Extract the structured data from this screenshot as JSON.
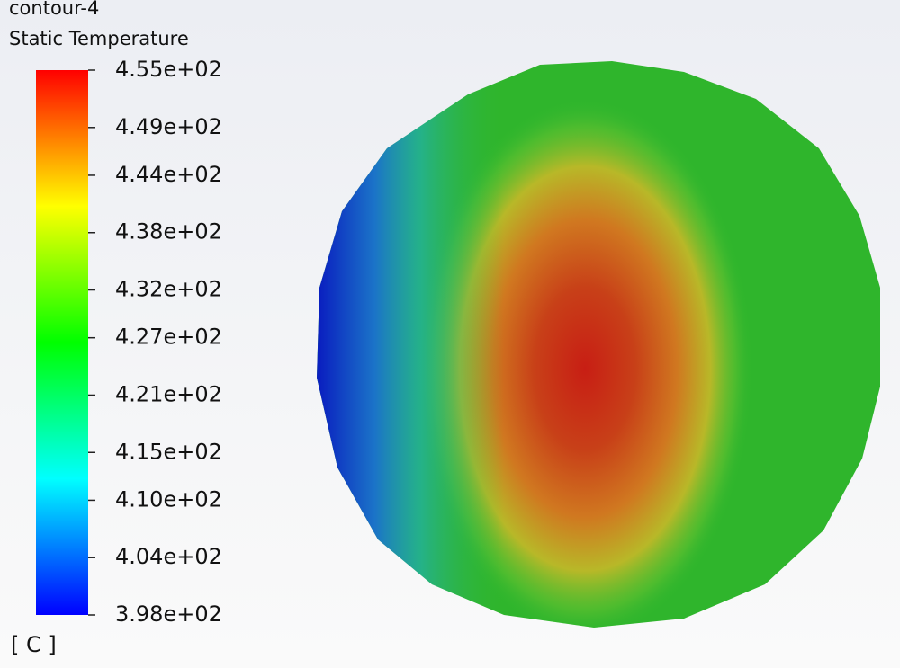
{
  "chart_data": {
    "type": "contour",
    "title": "contour-4",
    "subtitle": "Static Temperature",
    "unit": "[ C ]",
    "colormap": [
      "#0000ff",
      "#0080ff",
      "#00ffff",
      "#00ff80",
      "#00ff00",
      "#80ff00",
      "#ffff00",
      "#ff8000",
      "#ff0000"
    ],
    "clim": [
      398,
      455
    ],
    "cticks": [
      {
        "value": 455,
        "label": "4.55e+02"
      },
      {
        "value": 449,
        "label": "4.49e+02"
      },
      {
        "value": 444,
        "label": "4.44e+02"
      },
      {
        "value": 438,
        "label": "4.38e+02"
      },
      {
        "value": 432,
        "label": "4.32e+02"
      },
      {
        "value": 427,
        "label": "4.27e+02"
      },
      {
        "value": 421,
        "label": "4.21e+02"
      },
      {
        "value": 415,
        "label": "4.15e+02"
      },
      {
        "value": 410,
        "label": "4.10e+02"
      },
      {
        "value": 404,
        "label": "4.04e+02"
      },
      {
        "value": 398,
        "label": "3.98e+02"
      }
    ]
  }
}
